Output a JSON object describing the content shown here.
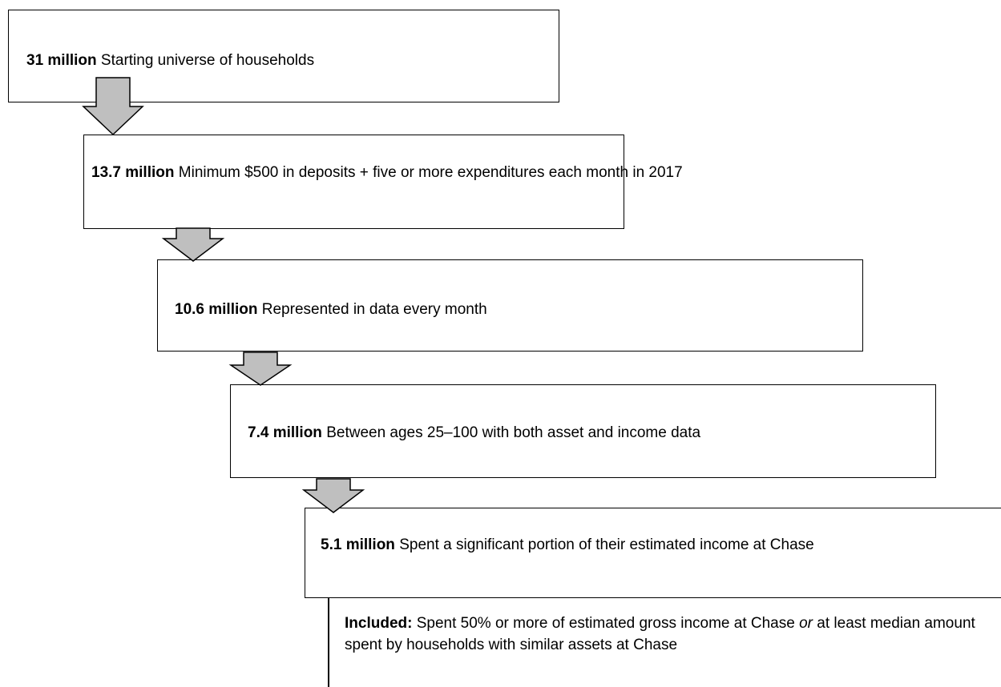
{
  "steps": [
    {
      "count": "31 million",
      "text": "Starting universe of households"
    },
    {
      "count": "13.7 million",
      "text": "Minimum $500 in deposits + five or more expenditures each month in 2017"
    },
    {
      "count": "10.6 million",
      "text": "Represented in data every month"
    },
    {
      "count": "7.4 million",
      "text": "Between ages 25–100 with both asset and income data"
    },
    {
      "count": "5.1 million",
      "text": "Spent a significant portion of their estimated income at Chase"
    }
  ],
  "note": {
    "label": "Included:",
    "text": "Spent 50% or more of estimated gross income at Chase",
    "emphasis": "or",
    "text2": "at least median amount spent by households with similar assets at Chase"
  }
}
